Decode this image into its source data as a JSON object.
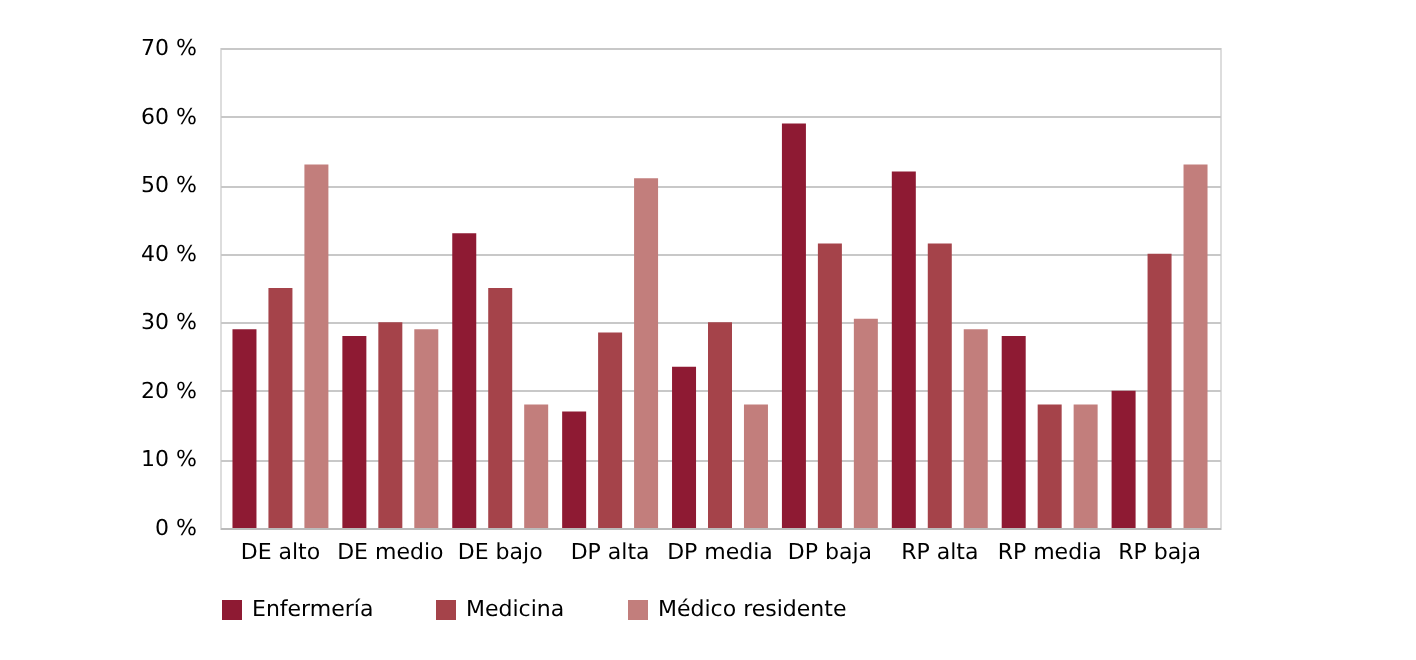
{
  "chart_data": {
    "type": "bar",
    "categories": [
      "DE alto",
      "DE medio",
      "DE bajo",
      "DP alta",
      "DP media",
      "DP baja",
      "RP alta",
      "RP media",
      "RP baja"
    ],
    "series": [
      {
        "name": "Enfermería",
        "color": "#8e1a33",
        "values": [
          29,
          28,
          43,
          17,
          23.5,
          59,
          52,
          28,
          20
        ]
      },
      {
        "name": "Medicina",
        "color": "#a5434a",
        "values": [
          35,
          30,
          35,
          28.5,
          30,
          41.5,
          41.5,
          18,
          40
        ]
      },
      {
        "name": "Médico residente",
        "color": "#c27e7c",
        "values": [
          53,
          29,
          18,
          51,
          18,
          30.5,
          29,
          18,
          53
        ]
      }
    ],
    "ylim": [
      0,
      70
    ],
    "yticks": [
      {
        "value": 0,
        "label": "0 %"
      },
      {
        "value": 10,
        "label": "10 %"
      },
      {
        "value": 20,
        "label": "20 %"
      },
      {
        "value": 30,
        "label": "30 %"
      },
      {
        "value": 40,
        "label": "40 %"
      },
      {
        "value": 50,
        "label": "50 %"
      },
      {
        "value": 60,
        "label": "60 %"
      },
      {
        "value": 70,
        "label": "70 %"
      }
    ],
    "grid": "y",
    "legend": "bottom"
  }
}
